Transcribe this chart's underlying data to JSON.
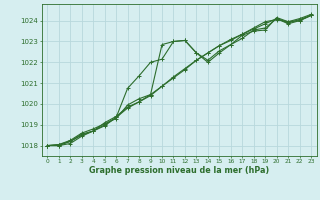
{
  "xlabel": "Graphe pression niveau de la mer (hPa)",
  "background_color": "#d6eef0",
  "grid_color": "#b8d8dc",
  "line_color": "#2d6e2d",
  "ylim": [
    1017.5,
    1024.8
  ],
  "xlim": [
    -0.5,
    23.5
  ],
  "yticks": [
    1018,
    1019,
    1020,
    1021,
    1022,
    1023,
    1024
  ],
  "xticks": [
    0,
    1,
    2,
    3,
    4,
    5,
    6,
    7,
    8,
    9,
    10,
    11,
    12,
    13,
    14,
    15,
    16,
    17,
    18,
    19,
    20,
    21,
    22,
    23
  ],
  "series": [
    [
      1018.0,
      1018.0,
      1018.2,
      1018.5,
      1018.7,
      1019.1,
      1019.4,
      1019.85,
      1020.1,
      1020.4,
      1020.85,
      1021.3,
      1021.7,
      1022.1,
      1022.45,
      1022.8,
      1023.05,
      1023.35,
      1023.65,
      1023.95,
      1024.05,
      1023.95,
      1024.0,
      1024.25
    ],
    [
      1018.0,
      1018.05,
      1018.25,
      1018.6,
      1018.8,
      1019.05,
      1019.3,
      1019.95,
      1020.25,
      1020.45,
      1022.85,
      1023.0,
      1023.05,
      1022.45,
      1022.0,
      1022.45,
      1022.85,
      1023.15,
      1023.55,
      1023.65,
      1024.1,
      1023.85,
      1024.0,
      1024.25
    ],
    [
      1018.0,
      1018.05,
      1018.2,
      1018.55,
      1018.7,
      1018.95,
      1019.35,
      1020.75,
      1021.35,
      1022.0,
      1022.15,
      1023.0,
      1023.05,
      1022.45,
      1022.1,
      1022.55,
      1022.85,
      1023.3,
      1023.5,
      1023.55,
      1024.15,
      1023.95,
      1024.1,
      1024.3
    ],
    [
      1018.0,
      1018.0,
      1018.1,
      1018.45,
      1018.7,
      1019.0,
      1019.35,
      1019.8,
      1020.1,
      1020.45,
      1020.85,
      1021.25,
      1021.65,
      1022.1,
      1022.45,
      1022.8,
      1023.1,
      1023.35,
      1023.6,
      1023.85,
      1024.1,
      1023.9,
      1024.05,
      1024.25
    ]
  ]
}
